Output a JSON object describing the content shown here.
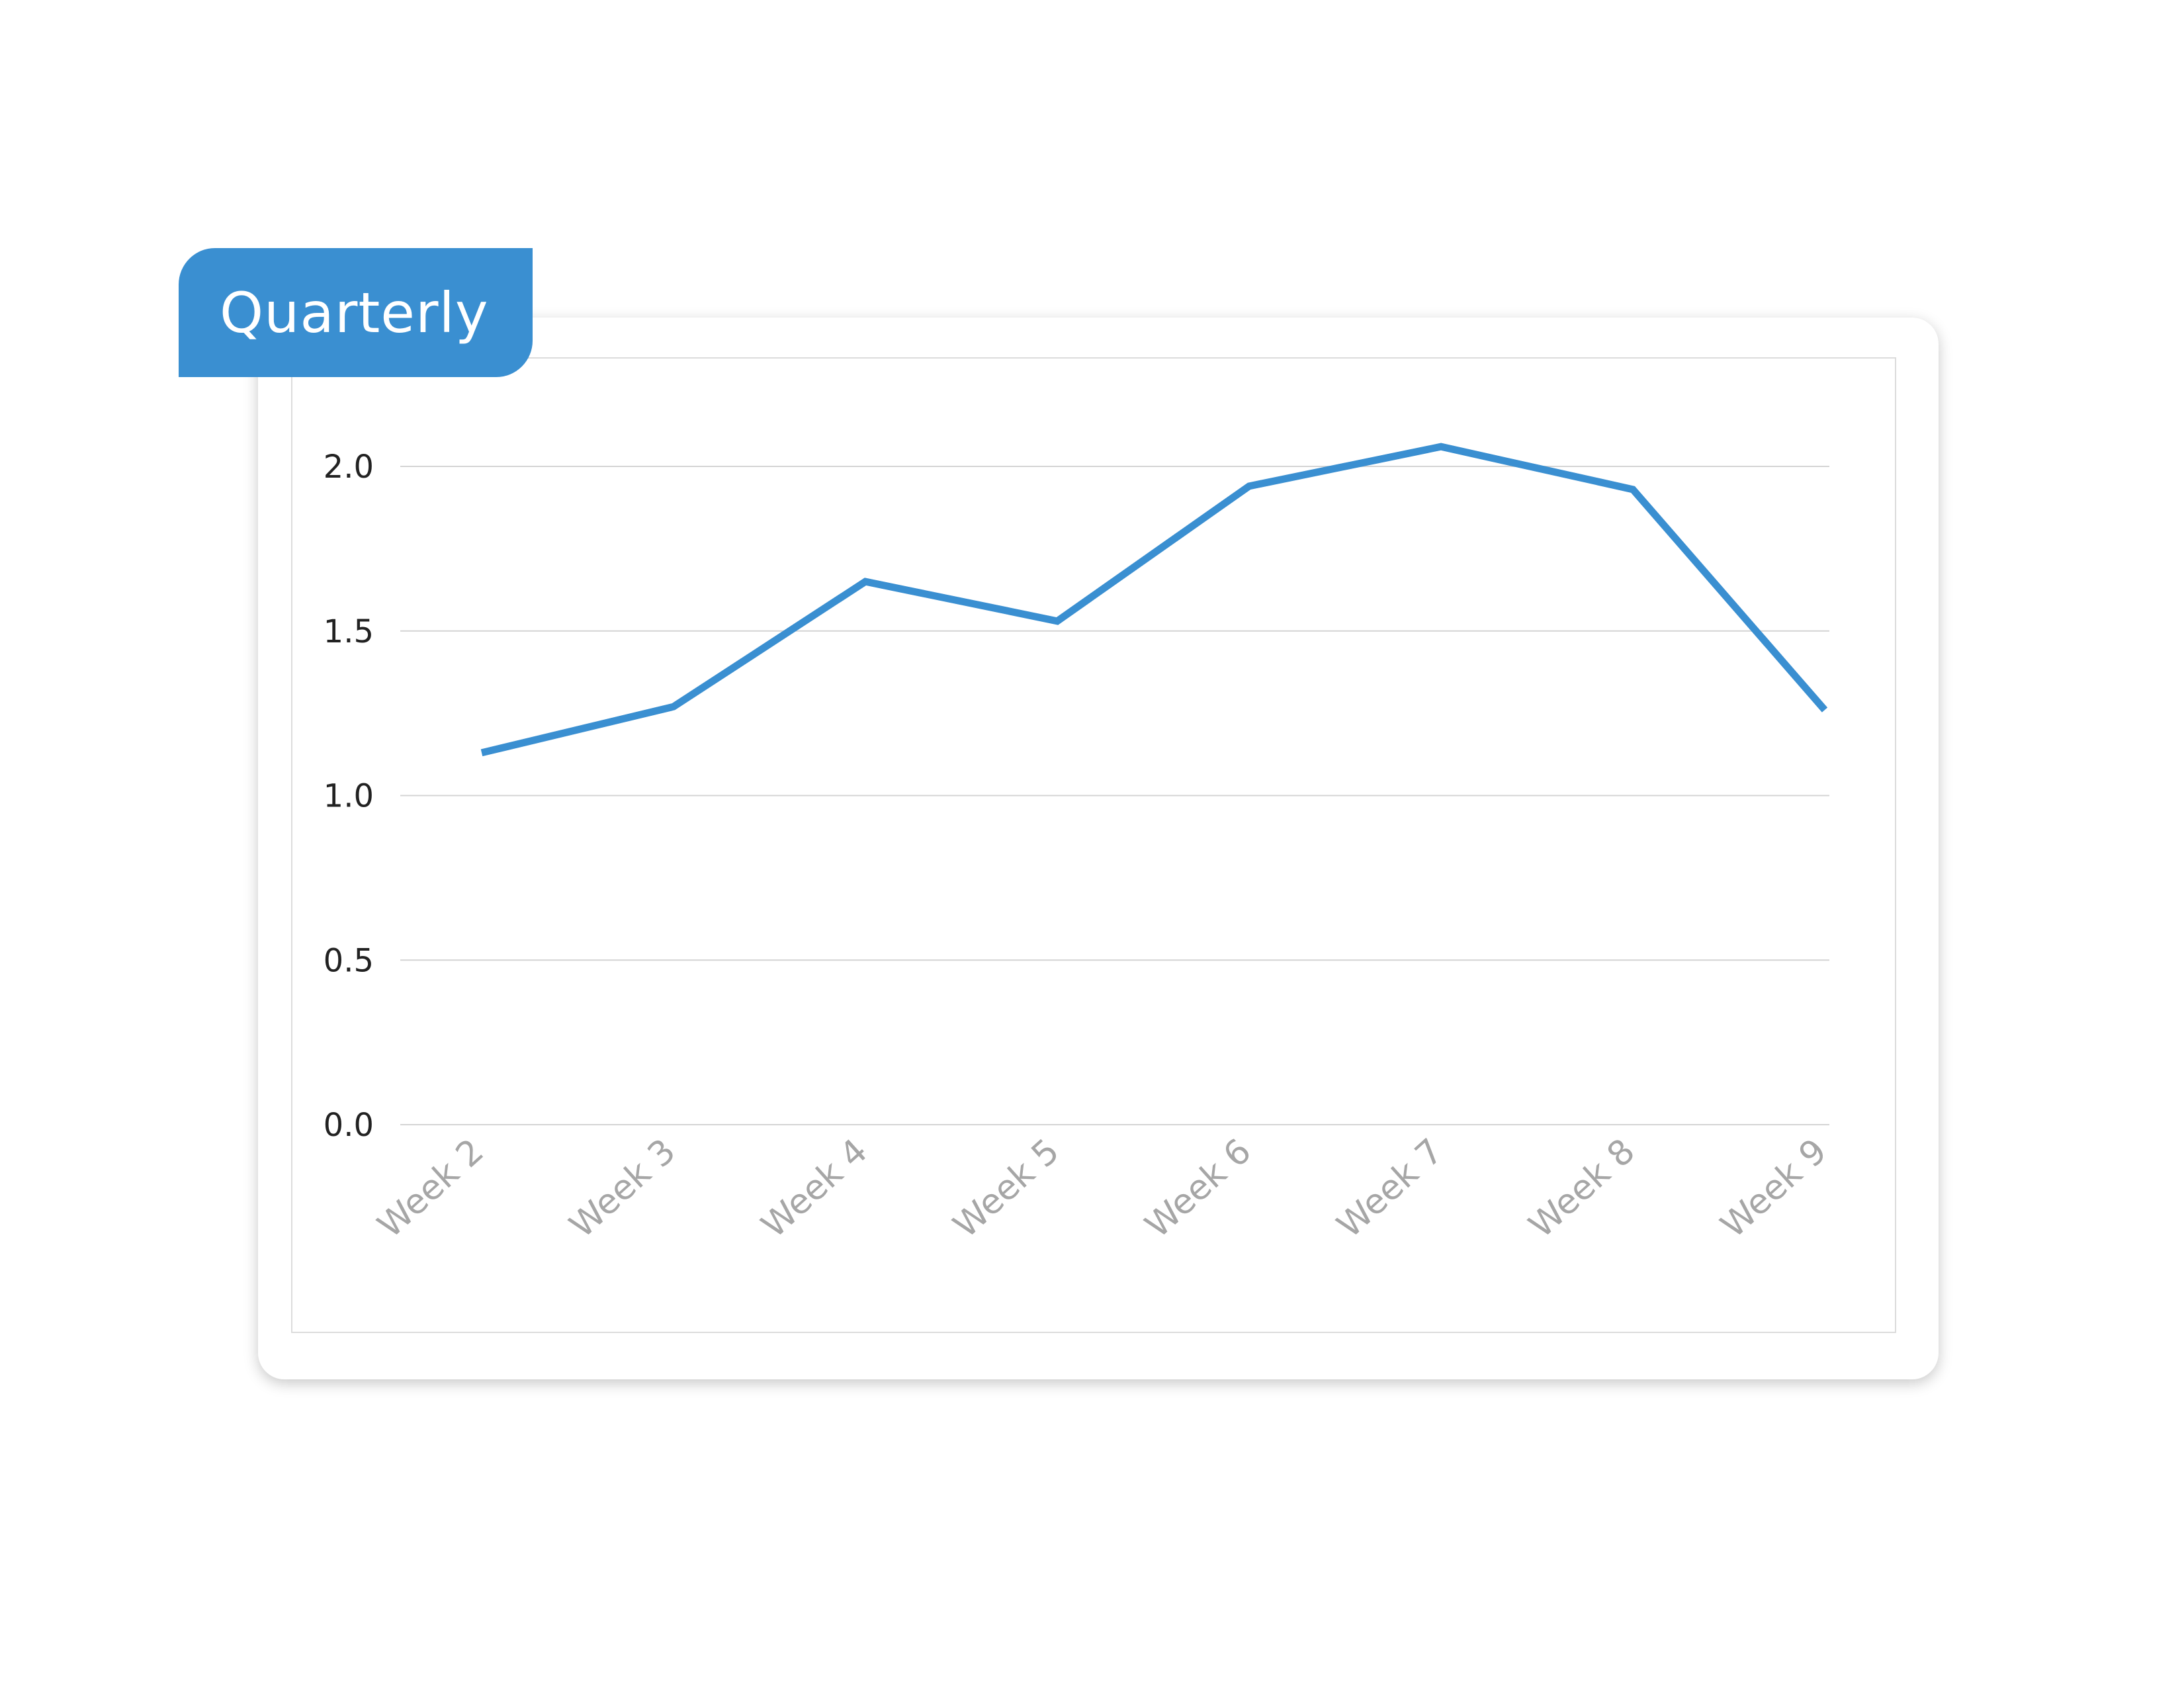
{
  "tab": {
    "label": "Quarterly"
  },
  "colors": {
    "accent": "#3a8fd1",
    "grid": "#d4d4d4",
    "xtick": "#a6a6a6",
    "ytick": "#222222"
  },
  "chart_data": {
    "type": "line",
    "categories": [
      "Week 2",
      "Week 3",
      "Week 4",
      "Week 5",
      "Week 6",
      "Week 7",
      "Week 8",
      "Week 9"
    ],
    "series": [
      {
        "values": [
          1.13,
          1.27,
          1.65,
          1.53,
          1.94,
          2.06,
          1.93,
          1.26
        ]
      }
    ],
    "ylim": [
      0,
      2.0
    ],
    "yticks": [
      "0.0",
      "0.5",
      "1.0",
      "1.5",
      "2.0"
    ],
    "xlabel": "",
    "ylabel": "",
    "grid": true,
    "legend": "none"
  }
}
